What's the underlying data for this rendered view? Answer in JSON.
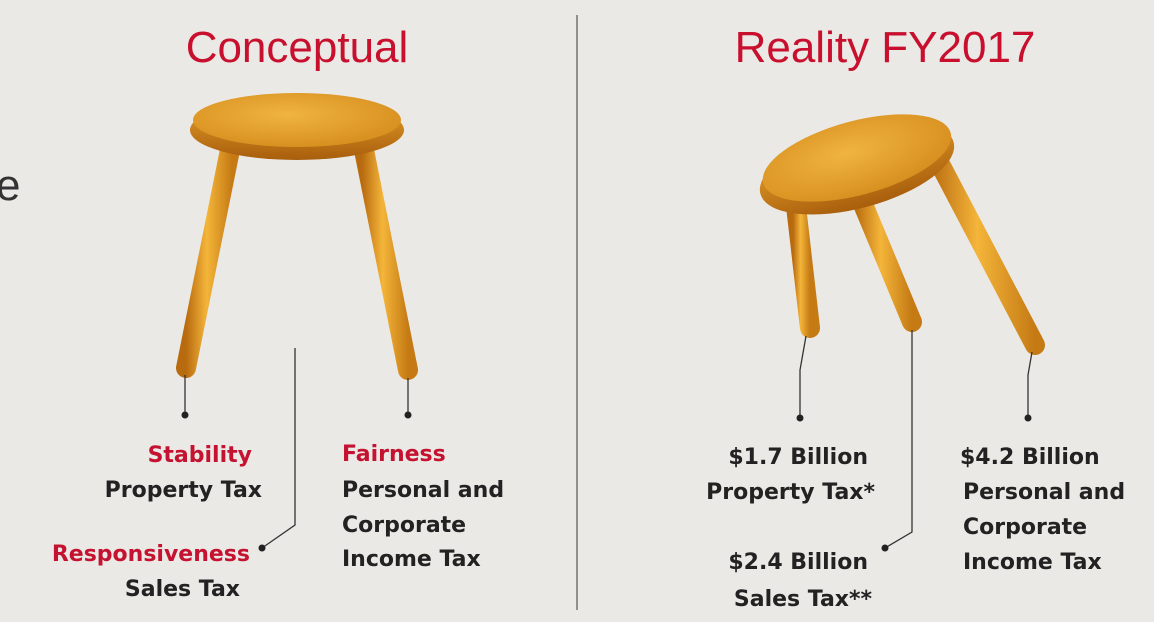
{
  "left_fragment": "e",
  "panels": [
    {
      "title": "Conceptual",
      "legs": [
        {
          "label": "Stability",
          "tax": [
            "Property Tax"
          ]
        },
        {
          "label": "Responsiveness",
          "tax": [
            "Sales Tax"
          ]
        },
        {
          "label": "Fairness",
          "tax": [
            "Personal and",
            "Corporate",
            "Income Tax"
          ]
        }
      ]
    },
    {
      "title": "Reality FY2017",
      "legs": [
        {
          "label": "$1.7 Billion",
          "tax": [
            "Property Tax*"
          ]
        },
        {
          "label": "$2.4 Billion",
          "tax": [
            "Sales Tax**"
          ]
        },
        {
          "label": "$4.2 Billion",
          "tax": [
            "Personal and",
            "Corporate",
            "Income Tax"
          ]
        }
      ]
    }
  ]
}
